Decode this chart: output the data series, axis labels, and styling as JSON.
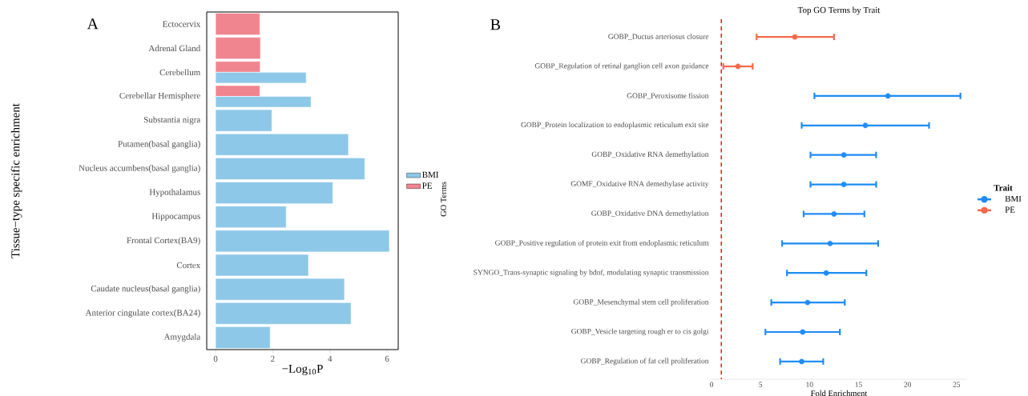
{
  "chart_data": [
    {
      "type": "bar",
      "orientation": "horizontal",
      "xlabel": "−Log$_{10}$P",
      "ylabel": "Tissue−type specific enrichment",
      "annotations": [
        "A"
      ],
      "categories": [
        "Ectocervix",
        "Adrenal Gland",
        "Cerebellum",
        "Cerebellar Hemisphere",
        "Substantia nigra",
        "Putamen(basal ganglia)",
        "Nucleus accumbens(basal ganglia)",
        "Hypothalamus",
        "Hippocampus",
        "Frontal Cortex(BA9)",
        "Cortex",
        "Caudate nucleus(basal ganglia)",
        "Anterior cingulate cortex(BA24)",
        "Amygdala"
      ],
      "series": [
        {
          "name": "BMI",
          "color": "#8ec8e8",
          "values": [
            null,
            null,
            3.17,
            3.34,
            1.97,
            4.65,
            5.22,
            4.1,
            2.47,
            6.08,
            3.25,
            4.51,
            4.74,
            1.91
          ]
        },
        {
          "name": "PE",
          "color": "#f08590",
          "values": [
            1.55,
            1.57,
            1.56,
            1.55,
            null,
            null,
            null,
            null,
            null,
            null,
            null,
            null,
            null,
            null
          ]
        }
      ],
      "xlim": [
        -0.31,
        6.39
      ],
      "xticks": [
        0,
        2,
        4,
        6
      ],
      "legend": "right"
    },
    {
      "type": "scatter",
      "orientation": "horizontal",
      "title": "Top GO Terms by Trait",
      "xlabel": "Fold Enrichment",
      "ylabel": "GO Terms",
      "annotations": [
        "B"
      ],
      "legend_title": "Trait",
      "categories": [
        "GOBP_Ductus arteriosus closure",
        "GOBP_Regulation of retinal ganglion cell axon guidance",
        "GOBP_Peroxisome fission",
        "GOBP_Protein localization to endoplasmic reticulum exit site",
        "GOBP_Oxidative RNA demethylation",
        "GOMF_Oxidative RNA demethylase activity",
        "GOBP_Oxidative DNA demethylation",
        "GOBP_Positive regulation of protein exit from endoplasmic reticulum",
        "SYNGO_Trans-synaptic signaling by bdnf, modulating synaptic transmission",
        "GOBP_Mesenchymal stem cell proliferation",
        "GOBP_Vesicle targeting rough er to cis golgi",
        "GOBP_Regulation of fat cell proliferation"
      ],
      "series": [
        {
          "name": "BMI",
          "color": "#1e8cf5",
          "values": [
            null,
            null,
            18.0,
            15.7,
            13.5,
            13.5,
            12.5,
            12.1,
            11.7,
            9.8,
            9.3,
            9.2
          ],
          "errors": [
            null,
            null,
            [
              10.5,
              25.4
            ],
            [
              9.2,
              22.2
            ],
            [
              10.1,
              16.8
            ],
            [
              10.1,
              16.8
            ],
            [
              9.4,
              15.6
            ],
            [
              7.2,
              17.0
            ],
            [
              7.7,
              15.8
            ],
            [
              6.1,
              13.6
            ],
            [
              5.5,
              13.1
            ],
            [
              7.0,
              11.4
            ]
          ]
        },
        {
          "name": "PE",
          "color": "#f5694b",
          "values": [
            8.5,
            2.7,
            null,
            null,
            null,
            null,
            null,
            null,
            null,
            null,
            null,
            null
          ],
          "errors": [
            [
              4.6,
              12.5
            ],
            [
              1.2,
              4.2
            ],
            null,
            null,
            null,
            null,
            null,
            null,
            null,
            null,
            null,
            null
          ]
        }
      ],
      "xlim": [
        0,
        26
      ],
      "xticks": [
        0,
        5,
        10,
        15,
        20,
        25
      ],
      "marker": "circle",
      "legend": "right",
      "ref_lines": [
        {
          "axis": "x",
          "value": 1,
          "color": "#ff0000",
          "line_style": "dashed"
        }
      ]
    }
  ]
}
